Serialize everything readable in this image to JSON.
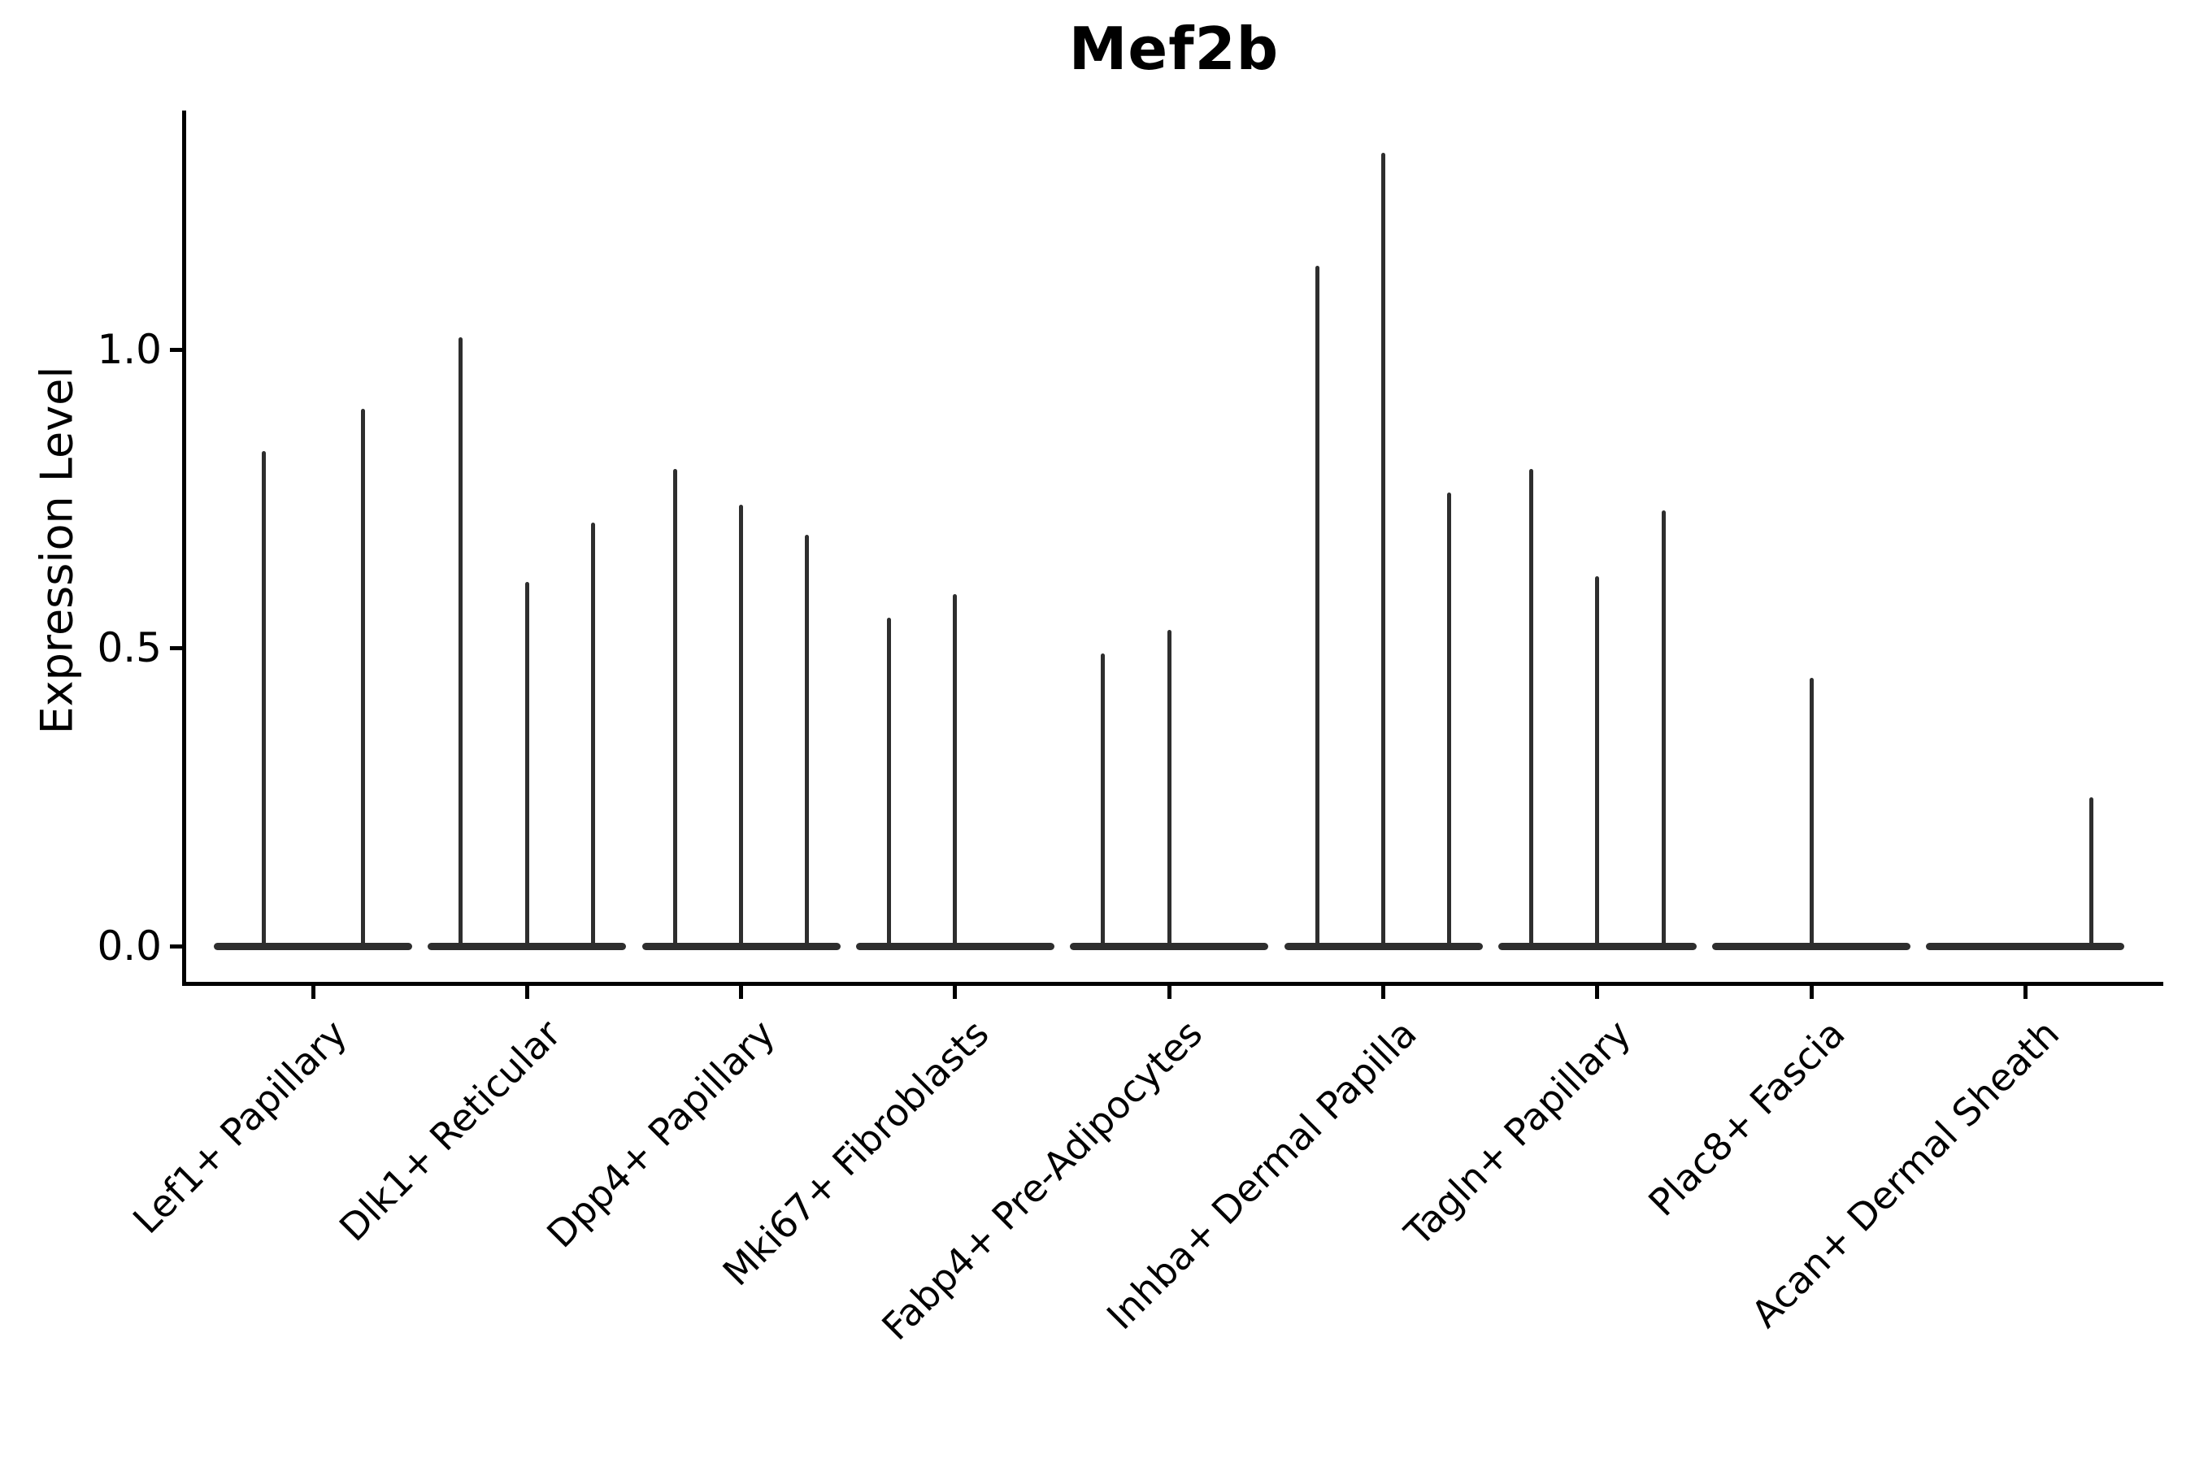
{
  "figure": {
    "background": "#ffffff"
  },
  "chart_data": {
    "type": "violin",
    "title": "Mef2b",
    "ylabel": "Expression Level",
    "xlabel": "",
    "ylim": [
      -0.07,
      1.41
    ],
    "grid": false,
    "legend": "none",
    "yticks": [
      {
        "value": 0.0,
        "label": "0.0"
      },
      {
        "value": 0.5,
        "label": "0.5"
      },
      {
        "value": 1.0,
        "label": "1.0"
      }
    ],
    "groups": [
      {
        "label": "Lef1+ Papillary",
        "violin_max_expression": [
          0.83,
          0.9
        ]
      },
      {
        "label": "Dlk1+ Reticular",
        "violin_max_expression": [
          1.02,
          0.61,
          0.71
        ]
      },
      {
        "label": "Dpp4+ Papillary",
        "violin_max_expression": [
          0.8,
          0.74,
          0.69
        ]
      },
      {
        "label": "Mki67+ Fibroblasts",
        "violin_max_expression": [
          0.55,
          0.59,
          0.0
        ]
      },
      {
        "label": "Fabp4+ Pre-Adipocytes",
        "violin_max_expression": [
          0.49,
          0.53,
          0.0
        ]
      },
      {
        "label": "Inhba+ Dermal Papilla",
        "violin_max_expression": [
          1.14,
          1.33,
          0.76
        ]
      },
      {
        "label": "Tagln+ Papillary",
        "violin_max_expression": [
          0.8,
          0.62,
          0.73
        ]
      },
      {
        "label": "Plac8+ Fascia",
        "violin_max_expression": [
          0.45
        ]
      },
      {
        "label": "Acan+ Dermal Sheath",
        "violin_max_expression": [
          0.0,
          0.0,
          0.25
        ]
      }
    ],
    "colors": {
      "violin": "#2e2e2e",
      "axis": "#000000",
      "text": "#000000"
    }
  }
}
